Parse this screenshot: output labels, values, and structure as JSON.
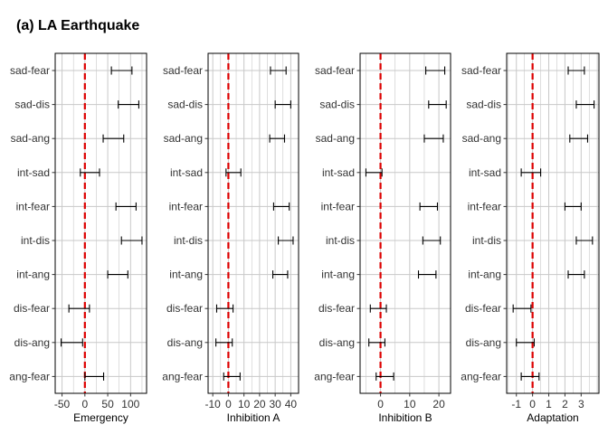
{
  "title": "(a) LA Earthquake",
  "colors": {
    "reference_line": "#dd0000",
    "grid": "#c8c8c8",
    "panel_border": "#000000",
    "error_bar": "#000000"
  },
  "chart_data": [
    {
      "type": "errorbar",
      "xlabel": "Emergency",
      "categories": [
        "sad-fear",
        "sad-dis",
        "sad-ang",
        "int-sad",
        "int-fear",
        "int-dis",
        "int-ang",
        "dis-fear",
        "dis-ang",
        "ang-fear"
      ],
      "lower": [
        58,
        73,
        40,
        -10,
        68,
        80,
        50,
        -35,
        -52,
        0
      ],
      "upper": [
        103,
        118,
        85,
        32,
        112,
        125,
        94,
        10,
        -5,
        41
      ],
      "xlim": [
        -65,
        135
      ],
      "xticks": [
        -50,
        0,
        50,
        100
      ],
      "xticklabels": [
        "-50",
        "0",
        "50",
        "100"
      ],
      "reference_x": 0,
      "grid": true
    },
    {
      "type": "errorbar",
      "xlabel": "Inhibition A",
      "categories": [
        "sad-fear",
        "sad-dis",
        "sad-ang",
        "int-sad",
        "int-fear",
        "int-dis",
        "int-ang",
        "dis-fear",
        "dis-ang",
        "ang-fear"
      ],
      "lower": [
        27,
        30,
        26.5,
        -1.5,
        29,
        32,
        28.5,
        -7.5,
        -8,
        -3
      ],
      "upper": [
        37,
        40,
        36,
        8,
        39,
        41.5,
        38,
        3,
        2.5,
        7.5
      ],
      "xlim": [
        -13,
        45
      ],
      "xticks": [
        -10,
        0,
        10,
        20,
        30,
        40
      ],
      "xticklabels": [
        "-10",
        "0",
        "10",
        "20",
        "30",
        "40"
      ],
      "reference_x": 0,
      "grid": true
    },
    {
      "type": "errorbar",
      "xlabel": "Inhibition B",
      "categories": [
        "sad-fear",
        "sad-dis",
        "sad-ang",
        "int-sad",
        "int-fear",
        "int-dis",
        "int-ang",
        "dis-fear",
        "dis-ang",
        "ang-fear"
      ],
      "lower": [
        15.5,
        16.5,
        15,
        -5,
        13.5,
        14.5,
        13,
        -3.5,
        -4,
        -1.5
      ],
      "upper": [
        22,
        22.5,
        21.5,
        0.5,
        19.5,
        20.5,
        19,
        2,
        1.5,
        4.5
      ],
      "xlim": [
        -7,
        24
      ],
      "xticks": [
        0,
        10,
        20
      ],
      "xticklabels": [
        "0",
        "10",
        "20"
      ],
      "reference_x": 0,
      "grid": true
    },
    {
      "type": "errorbar",
      "xlabel": "Adaptation",
      "categories": [
        "sad-fear",
        "sad-dis",
        "sad-ang",
        "int-sad",
        "int-fear",
        "int-dis",
        "int-ang",
        "dis-fear",
        "dis-ang",
        "ang-fear"
      ],
      "lower": [
        2.2,
        2.7,
        2.3,
        -0.7,
        2.0,
        2.7,
        2.2,
        -1.2,
        -1.0,
        -0.7
      ],
      "upper": [
        3.2,
        3.8,
        3.4,
        0.5,
        3.0,
        3.7,
        3.2,
        -0.1,
        0.1,
        0.4
      ],
      "xlim": [
        -1.6,
        4.1
      ],
      "xticks": [
        -1,
        0,
        1,
        2,
        3
      ],
      "xticklabels": [
        "-1",
        "0",
        "1",
        "2",
        "3"
      ],
      "reference_x": 0,
      "grid": true
    }
  ]
}
